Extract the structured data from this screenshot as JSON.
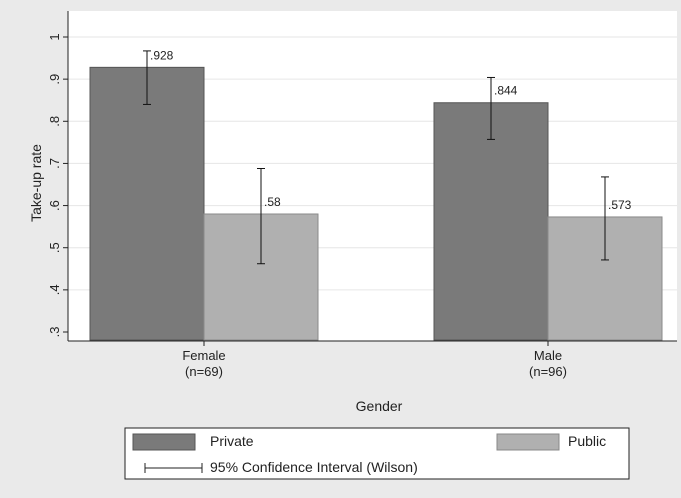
{
  "chart_data": {
    "type": "bar",
    "ylabel": "Take-up rate",
    "xlabel": "Gender",
    "ylim": [
      0.3,
      1.0
    ],
    "yticks": [
      ".3",
      ".4",
      ".5",
      ".6",
      ".7",
      ".8",
      ".9",
      "1"
    ],
    "grid": true,
    "categories": [
      {
        "name": "Female",
        "n_label": "(n=69)"
      },
      {
        "name": "Male",
        "n_label": "(n=96)"
      }
    ],
    "series": [
      {
        "name": "Private",
        "color": "#7a7a7a",
        "values": [
          0.928,
          0.844
        ],
        "labels": [
          ".928",
          ".844"
        ],
        "ci_low": [
          0.84,
          0.757
        ],
        "ci_high": [
          0.967,
          0.904
        ]
      },
      {
        "name": "Public",
        "color": "#b0b0b0",
        "values": [
          0.58,
          0.573
        ],
        "labels": [
          ".58",
          ".573"
        ],
        "ci_low": [
          0.462,
          0.471
        ],
        "ci_high": [
          0.688,
          0.668
        ]
      }
    ],
    "legend": {
      "placement": "bottom",
      "ci_label": "95% Confidence Interval (Wilson)"
    }
  }
}
